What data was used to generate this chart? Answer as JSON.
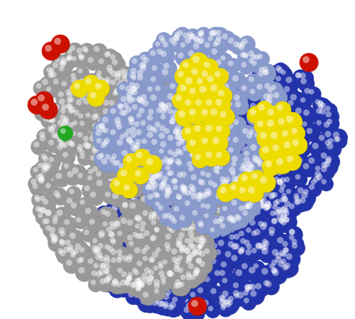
{
  "figsize": [
    5.0,
    4.5
  ],
  "dpi": 100,
  "background_color": "#ffffff",
  "gray_color": "#999999",
  "light_blue_color": "#8899cc",
  "dark_blue_color": "#2233aa",
  "yellow_color": "#eedb00",
  "red_color": "#cc1100",
  "green_color": "#22aa22",
  "sphere_r": 0.022,
  "seed": 7
}
